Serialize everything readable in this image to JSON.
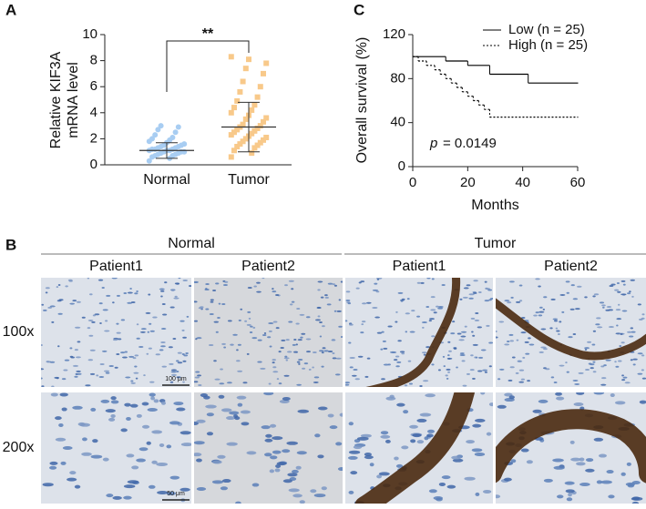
{
  "panels": {
    "a": "A",
    "b": "B",
    "c": "C"
  },
  "chart_data": [
    {
      "type": "strip",
      "ylabel": [
        "Relative KIF3A",
        "mRNA level"
      ],
      "categories": [
        "Normal",
        "Tumor"
      ],
      "colors": [
        "#a8cdf2",
        "#f8c98a"
      ],
      "ylim": [
        0,
        10
      ],
      "yticks": [
        0,
        2,
        4,
        6,
        8,
        10
      ],
      "significance": "**",
      "values": [
        [
          0.3,
          0.5,
          0.6,
          0.7,
          0.7,
          0.8,
          0.8,
          0.9,
          0.9,
          1.0,
          1.0,
          1.0,
          1.1,
          1.1,
          1.1,
          1.2,
          1.2,
          1.2,
          1.3,
          1.3,
          1.4,
          1.4,
          1.5,
          1.5,
          1.6,
          1.7,
          1.8,
          1.9,
          2.0,
          2.1,
          2.3,
          2.5,
          2.7,
          2.9,
          3.0
        ],
        [
          0.6,
          0.9,
          1.1,
          1.3,
          1.4,
          1.5,
          1.6,
          1.7,
          1.8,
          1.9,
          2.0,
          2.1,
          2.2,
          2.3,
          2.4,
          2.5,
          2.6,
          2.7,
          2.8,
          2.9,
          3.0,
          3.1,
          3.3,
          3.5,
          3.6,
          3.8,
          4.0,
          4.2,
          4.4,
          4.6,
          4.9,
          5.2,
          5.6,
          6.0,
          6.4,
          7.0,
          7.4,
          7.8,
          8.1,
          8.3
        ]
      ],
      "means": [
        1.1,
        2.9
      ],
      "sds": [
        0.6,
        1.9
      ]
    },
    {
      "type": "survival",
      "xlabel": "Months",
      "ylabel": "Overall survival (%)",
      "xlim": [
        0,
        60
      ],
      "xticks": [
        0,
        20,
        40,
        60
      ],
      "ylim": [
        0,
        120
      ],
      "yticks": [
        0,
        40,
        80,
        120
      ],
      "p_symbol": "p",
      "p_text": "= 0.0149",
      "legend": "upper right",
      "series": [
        {
          "name": "Low (n = 25)",
          "dash": "solid",
          "color": "#000000",
          "x": [
            0,
            12,
            20,
            28,
            42,
            60
          ],
          "values": [
            100,
            96,
            92,
            84,
            76,
            76
          ]
        },
        {
          "name": "High (n = 25)",
          "dash": "dotted",
          "color": "#000000",
          "x": [
            0,
            2,
            5,
            8,
            10,
            12,
            14,
            16,
            18,
            20,
            22,
            24,
            26,
            28,
            60
          ],
          "values": [
            100,
            96,
            92,
            88,
            84,
            80,
            76,
            72,
            68,
            64,
            60,
            56,
            52,
            45,
            45
          ]
        }
      ]
    }
  ],
  "ihc": {
    "groups": [
      "Normal",
      "Tumor"
    ],
    "columns": [
      "Patient1",
      "Patient2",
      "Patient1",
      "Patient2"
    ],
    "rows": [
      "100x",
      "200x"
    ],
    "scale_bars": [
      "100 μm",
      "50 μm"
    ]
  }
}
